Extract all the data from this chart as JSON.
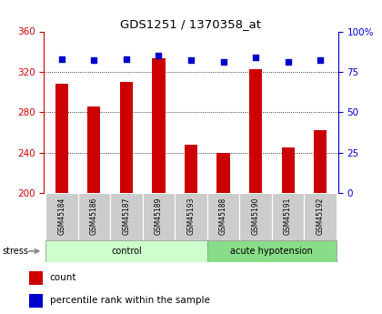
{
  "title": "GDS1251 / 1370358_at",
  "samples": [
    "GSM45184",
    "GSM45186",
    "GSM45187",
    "GSM45189",
    "GSM45193",
    "GSM45188",
    "GSM45190",
    "GSM45191",
    "GSM45192"
  ],
  "counts": [
    308,
    286,
    310,
    333,
    248,
    240,
    323,
    245,
    262
  ],
  "percentiles": [
    83,
    82,
    83,
    85,
    82,
    81,
    84,
    81,
    82
  ],
  "ylim_left": [
    200,
    360
  ],
  "ylim_right": [
    0,
    100
  ],
  "yticks_left": [
    200,
    240,
    280,
    320,
    360
  ],
  "yticks_right": [
    0,
    25,
    50,
    75,
    100
  ],
  "groups": [
    {
      "label": "control",
      "start": 0,
      "end": 5,
      "color": "#ccffcc"
    },
    {
      "label": "acute hypotension",
      "start": 5,
      "end": 9,
      "color": "#88dd88"
    }
  ],
  "bar_color": "#cc0000",
  "dot_color": "#0000cc",
  "bar_width": 0.4,
  "grid_color": "#000000",
  "label_area_color": "#cccccc",
  "stress_label": "stress",
  "count_label": "count",
  "percentile_label": "percentile rank within the sample",
  "left_axis_color": "#cc0000",
  "right_axis_color": "#0000cc",
  "background_color": "#ffffff",
  "grid_lines": [
    240,
    280,
    320
  ]
}
